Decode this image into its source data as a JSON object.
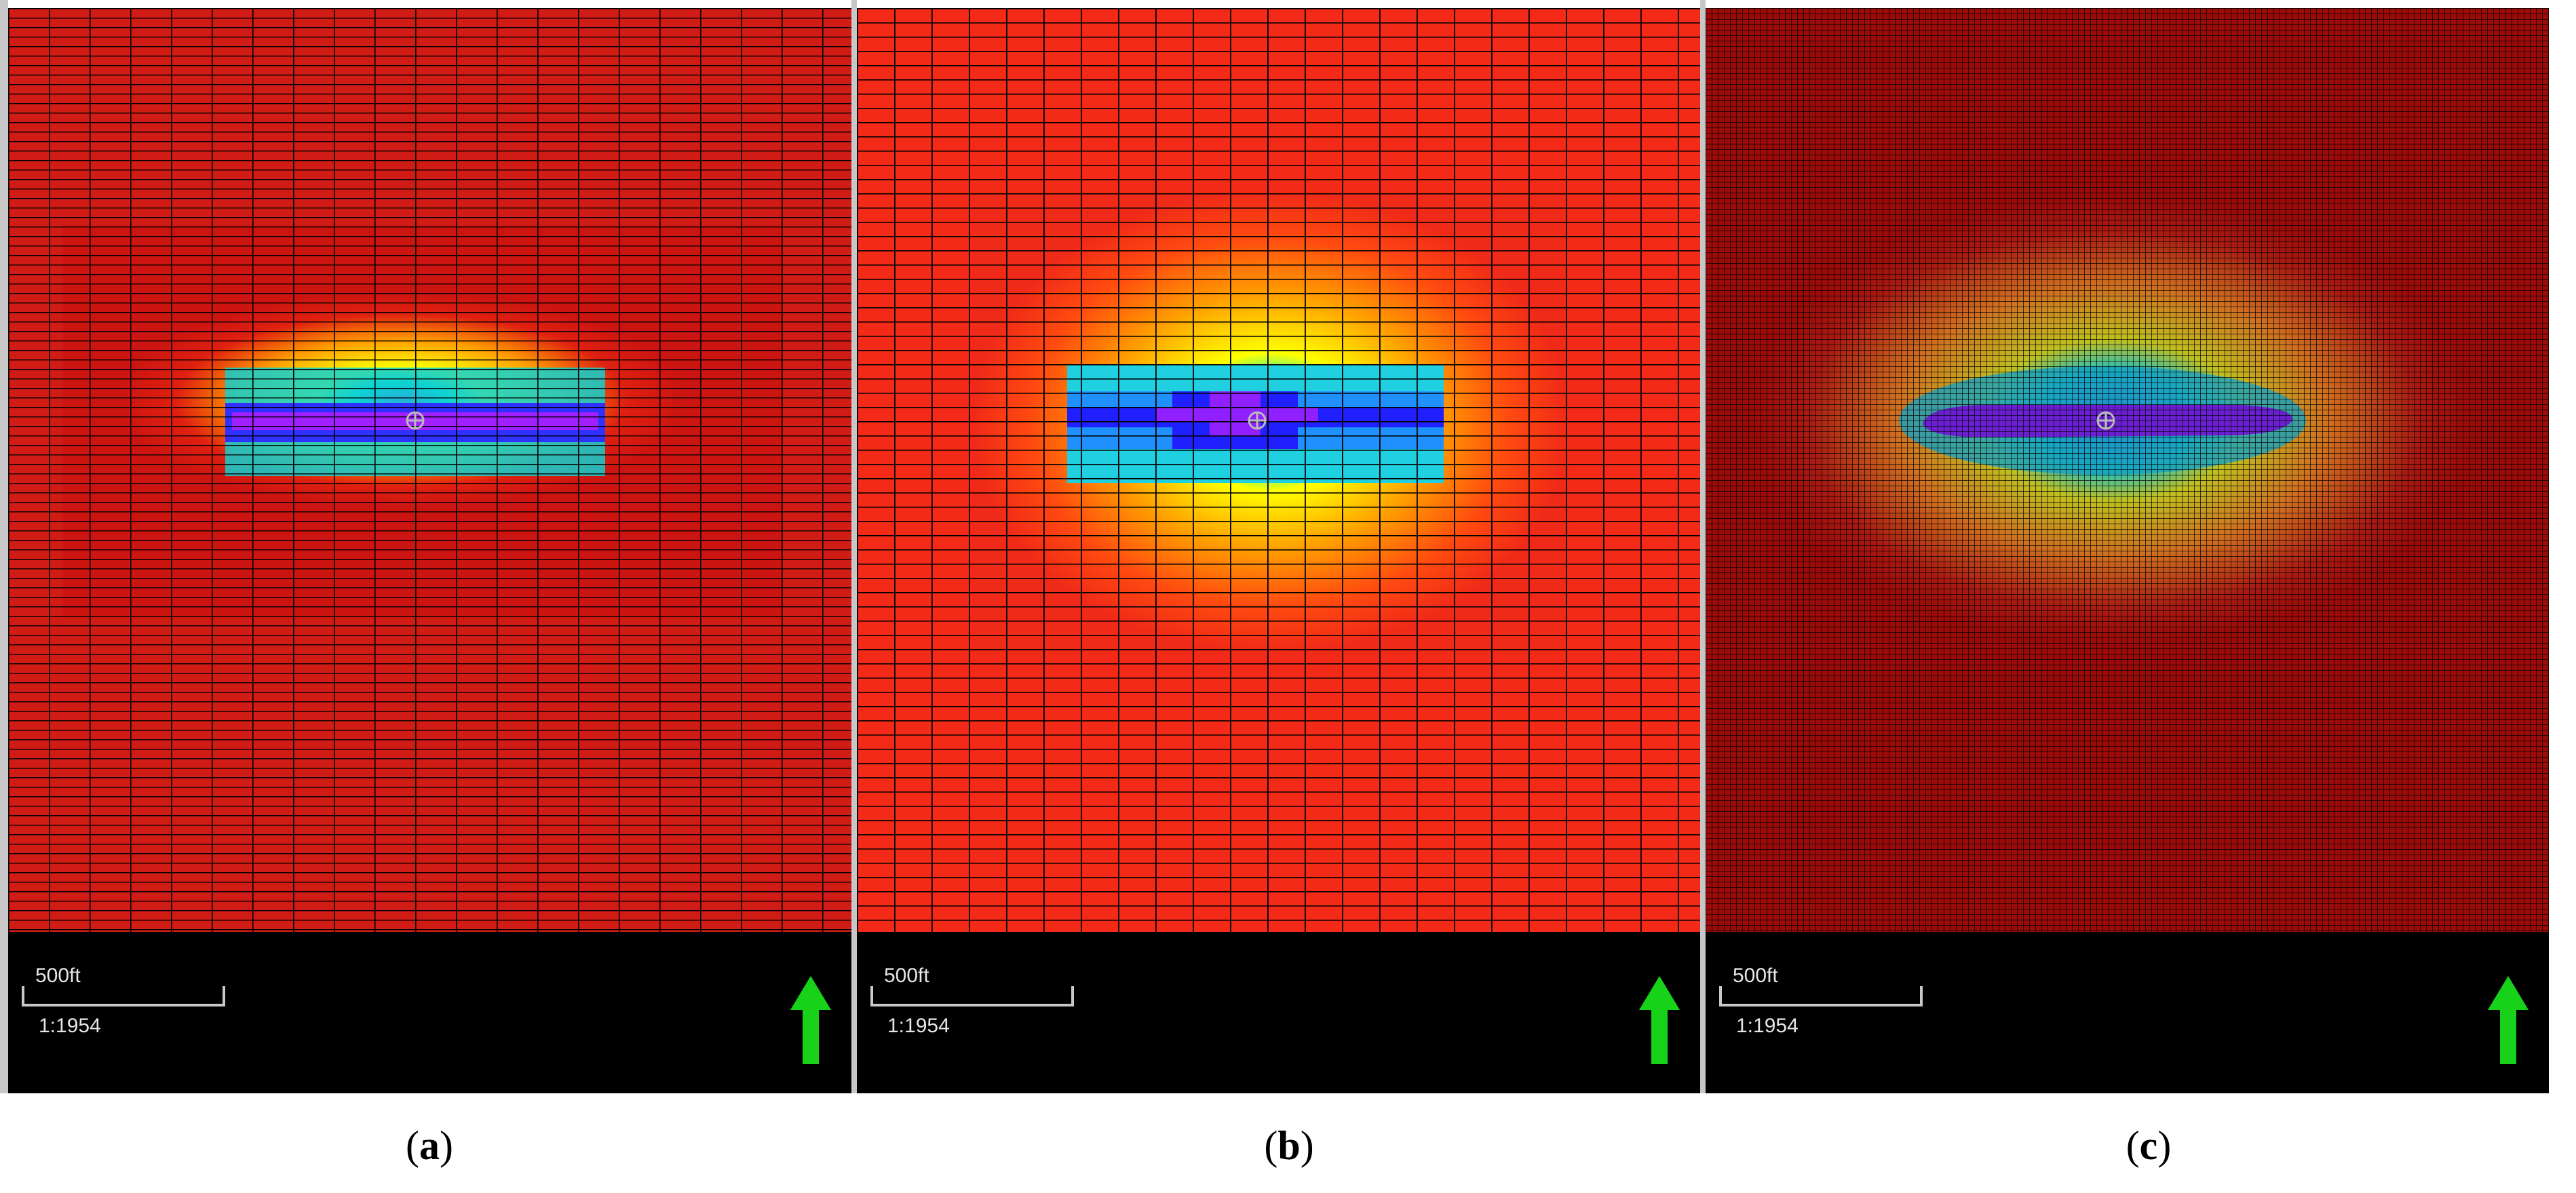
{
  "panels": [
    {
      "id": "a",
      "caption_letter": "a",
      "grid": "coarse-refined",
      "scale_label": "500ft",
      "ratio": "1:1954"
    },
    {
      "id": "b",
      "caption_letter": "b",
      "grid": "coarse",
      "scale_label": "500ft",
      "ratio": "1:1954"
    },
    {
      "id": "c",
      "caption_letter": "c",
      "grid": "fine",
      "scale_label": "500ft",
      "ratio": "1:1954"
    }
  ],
  "icons": {
    "north": "north-arrow-icon",
    "well": "well-marker-icon"
  },
  "colors": {
    "background_red": "#e01a14",
    "dark_red": "#9a0b0a",
    "arrow": "#18d21a",
    "separator": "#c7c7c7"
  }
}
